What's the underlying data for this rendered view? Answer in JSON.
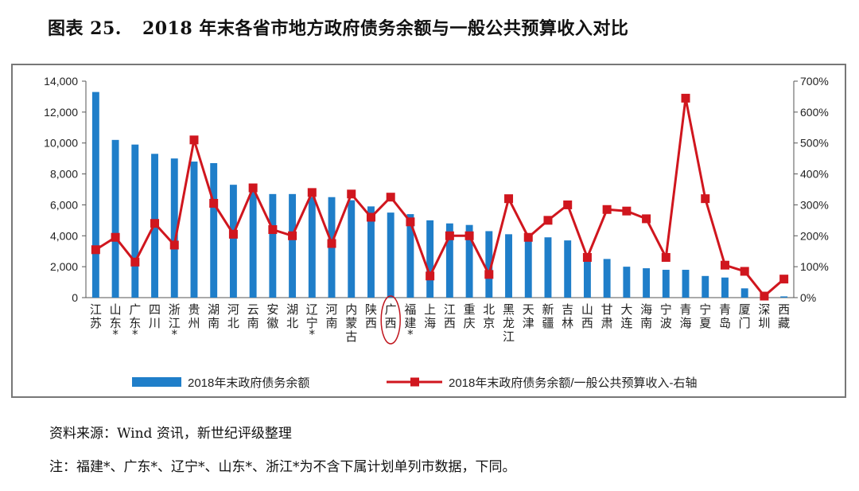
{
  "header": {
    "figure_no": "图表 25.",
    "title": "2018 年末各省市地方政府债务余额与一般公共预算收入对比"
  },
  "chart_data": {
    "type": "bar+line",
    "categories": [
      "江苏",
      "山东*",
      "广东*",
      "四川",
      "浙江*",
      "贵州",
      "湖南",
      "河北",
      "云南",
      "安徽",
      "湖北",
      "辽宁*",
      "河南",
      "内蒙古",
      "陕西",
      "广西",
      "福建*",
      "上海",
      "江西",
      "重庆",
      "北京",
      "黑龙江",
      "天津",
      "新疆",
      "吉林",
      "山西",
      "甘肃",
      "大连",
      "海南",
      "宁波",
      "青海",
      "宁夏",
      "青岛",
      "厦门",
      "深圳",
      "西藏"
    ],
    "series": [
      {
        "name": "2018年末政府债务余额",
        "type": "bar",
        "axis": "left",
        "color": "#1f7ec9",
        "values": [
          13300,
          10200,
          9900,
          9300,
          9000,
          8800,
          8700,
          7300,
          7000,
          6700,
          6700,
          6500,
          6500,
          6300,
          5900,
          5500,
          5400,
          5000,
          4800,
          4700,
          4300,
          4100,
          4000,
          3900,
          3700,
          2800,
          2500,
          2000,
          1900,
          1800,
          1800,
          1400,
          1300,
          600,
          50,
          80
        ]
      },
      {
        "name": "2018年末政府债务余额/一般公共预算收入-右轴",
        "type": "line",
        "axis": "right",
        "color": "#d0161e",
        "values": [
          155,
          195,
          115,
          240,
          170,
          510,
          305,
          205,
          355,
          220,
          200,
          340,
          175,
          335,
          260,
          325,
          245,
          70,
          200,
          200,
          75,
          320,
          195,
          250,
          300,
          130,
          285,
          280,
          255,
          130,
          645,
          320,
          105,
          85,
          5,
          60
        ]
      }
    ],
    "y_left": {
      "min": 0,
      "max": 14000,
      "ticks": [
        "0",
        "2,000",
        "4,000",
        "6,000",
        "8,000",
        "10,000",
        "12,000",
        "14,000"
      ]
    },
    "y_right": {
      "min": 0,
      "max": 700,
      "ticks": [
        "0%",
        "100%",
        "200%",
        "300%",
        "400%",
        "500%",
        "600%",
        "700%"
      ]
    },
    "highlight_category": "广西",
    "legend": "bottom",
    "grid": false
  },
  "legend": {
    "bar_label": "2018年末政府债务余额",
    "line_label": "2018年末政府债务余额/一般公共预算收入-右轴"
  },
  "footer": {
    "source": "资料来源：Wind 资讯，新世纪评级整理",
    "note": "注：福建*、广东*、辽宁*、山东*、浙江*为不含下属计划单列市数据，下同。"
  }
}
